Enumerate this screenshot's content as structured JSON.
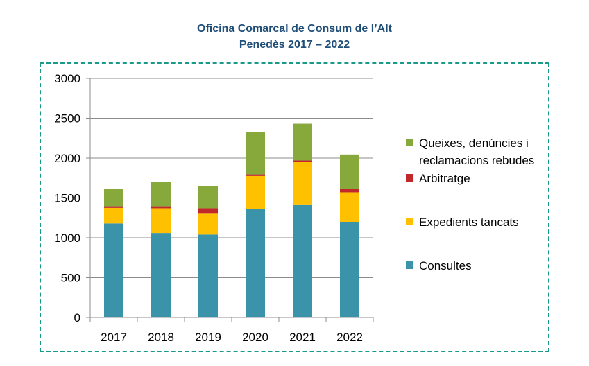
{
  "chart_data": {
    "type": "bar",
    "stacked": true,
    "title_lines": [
      "Oficina Comarcal de Consum de l’Alt",
      "Penedès 2017 – 2022"
    ],
    "categories": [
      "2017",
      "2018",
      "2019",
      "2020",
      "2021",
      "2022"
    ],
    "ylim": [
      0,
      3000
    ],
    "yticks": [
      0,
      500,
      1000,
      1500,
      2000,
      2500,
      3000
    ],
    "grid": true,
    "legend_position": "right",
    "series": [
      {
        "name": "Consultes",
        "color": "#3a93a8",
        "values": [
          1180,
          1060,
          1040,
          1365,
          1410,
          1200
        ]
      },
      {
        "name": "Expedients tancats",
        "color": "#ffc000",
        "values": [
          195,
          310,
          270,
          410,
          545,
          370
        ]
      },
      {
        "name": "Arbitratge",
        "color": "#c0282c",
        "values": [
          20,
          25,
          60,
          20,
          15,
          40
        ]
      },
      {
        "name": "Queixes, denúncies i reclamacions rebudes",
        "legend_lines": [
          "Queixes, denúncies i",
          "reclamacions rebudes"
        ],
        "color": "#87a83a",
        "values": [
          215,
          305,
          275,
          535,
          460,
          435
        ]
      }
    ]
  }
}
